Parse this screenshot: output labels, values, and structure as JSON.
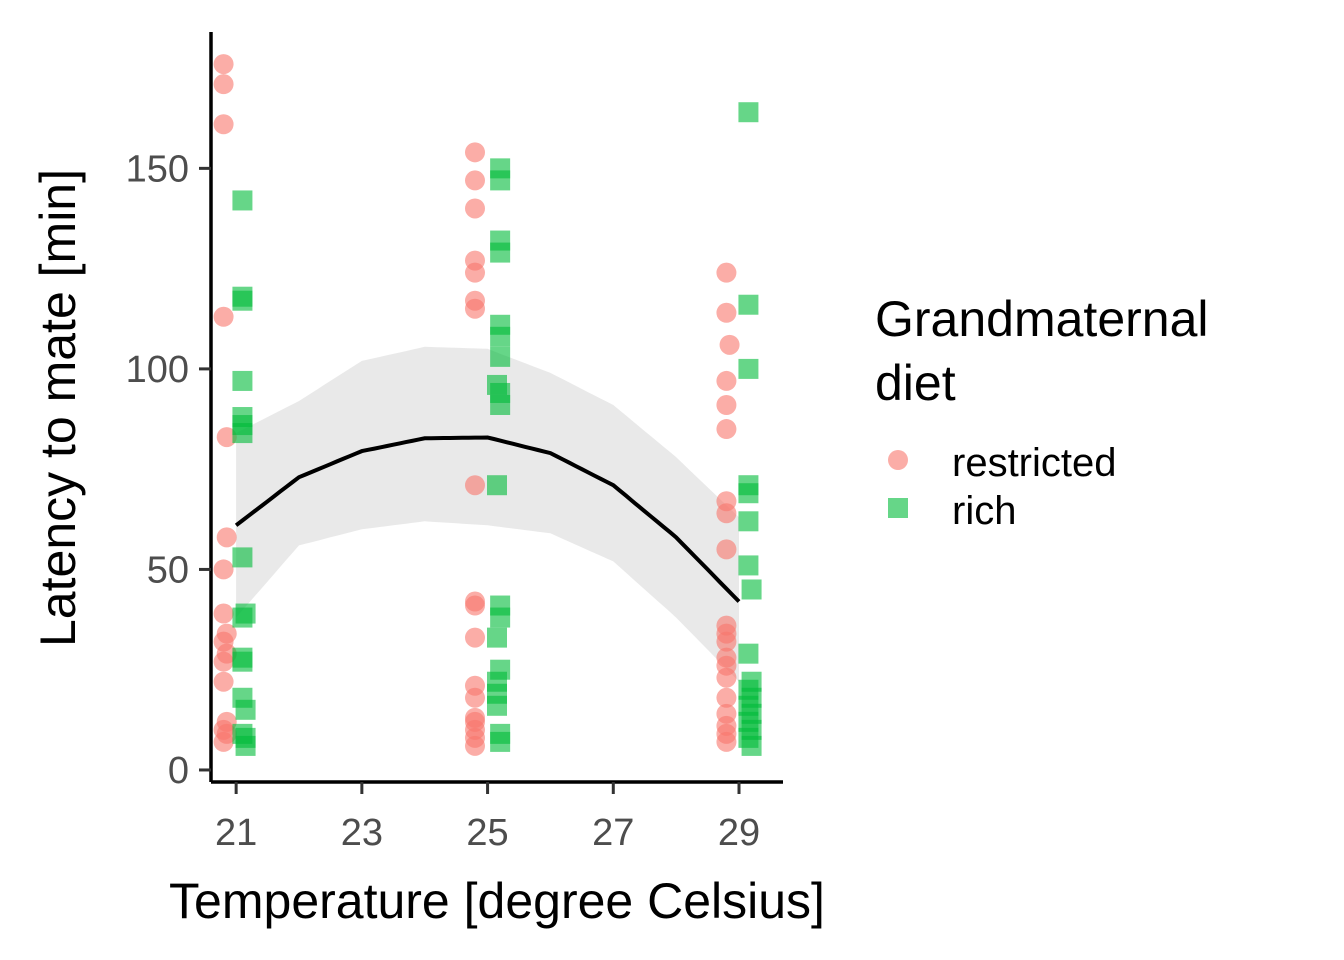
{
  "chart_data": {
    "type": "scatter",
    "title": "",
    "xlabel": "Temperature [degree Celsius]",
    "ylabel": "Latency to mate [min]",
    "xlim": [
      20.6,
      29.7
    ],
    "ylim": [
      -3,
      184
    ],
    "xticks": [
      21,
      23,
      25,
      27,
      29
    ],
    "yticks": [
      0,
      50,
      100,
      150
    ],
    "grid": false,
    "legend": {
      "title_lines": [
        "Grandmaternal",
        "diet"
      ],
      "position": "right"
    },
    "colors": {
      "restricted": "#f8766d",
      "rich": "#00ba38",
      "trend": "#000000",
      "band": "#e5e5e5"
    },
    "series": [
      {
        "name": "restricted",
        "marker": "circle",
        "points": [
          [
            20.8,
            176
          ],
          [
            20.8,
            171
          ],
          [
            20.8,
            161
          ],
          [
            20.8,
            113
          ],
          [
            20.85,
            83
          ],
          [
            20.85,
            58
          ],
          [
            20.8,
            50
          ],
          [
            20.8,
            39
          ],
          [
            20.85,
            34
          ],
          [
            20.8,
            32
          ],
          [
            20.85,
            29
          ],
          [
            20.8,
            27
          ],
          [
            20.8,
            22
          ],
          [
            20.85,
            12
          ],
          [
            20.8,
            10
          ],
          [
            20.85,
            9
          ],
          [
            20.8,
            7
          ],
          [
            24.8,
            154
          ],
          [
            24.8,
            147
          ],
          [
            24.8,
            140
          ],
          [
            24.8,
            127
          ],
          [
            24.8,
            124
          ],
          [
            24.8,
            117
          ],
          [
            24.8,
            115
          ],
          [
            24.8,
            71
          ],
          [
            24.8,
            42
          ],
          [
            24.8,
            41
          ],
          [
            24.8,
            33
          ],
          [
            24.8,
            21
          ],
          [
            24.8,
            18
          ],
          [
            24.8,
            13
          ],
          [
            24.8,
            12
          ],
          [
            24.8,
            10
          ],
          [
            24.8,
            8
          ],
          [
            24.8,
            6
          ],
          [
            28.8,
            124
          ],
          [
            28.8,
            114
          ],
          [
            28.85,
            106
          ],
          [
            28.8,
            97
          ],
          [
            28.8,
            91
          ],
          [
            28.8,
            85
          ],
          [
            28.8,
            67
          ],
          [
            28.8,
            64
          ],
          [
            28.8,
            55
          ],
          [
            28.8,
            36
          ],
          [
            28.8,
            34
          ],
          [
            28.8,
            32
          ],
          [
            28.8,
            28
          ],
          [
            28.8,
            26
          ],
          [
            28.8,
            23
          ],
          [
            28.8,
            18
          ],
          [
            28.8,
            14
          ],
          [
            28.8,
            11
          ],
          [
            28.8,
            9
          ],
          [
            28.8,
            7
          ]
        ]
      },
      {
        "name": "rich",
        "marker": "square",
        "points": [
          [
            21.1,
            142
          ],
          [
            21.1,
            118
          ],
          [
            21.1,
            117
          ],
          [
            21.1,
            97
          ],
          [
            21.1,
            88
          ],
          [
            21.1,
            86
          ],
          [
            21.1,
            84
          ],
          [
            21.1,
            53
          ],
          [
            21.15,
            39
          ],
          [
            21.1,
            38
          ],
          [
            21.1,
            28
          ],
          [
            21.1,
            27
          ],
          [
            21.1,
            18
          ],
          [
            21.15,
            15
          ],
          [
            21.1,
            9
          ],
          [
            21.15,
            8
          ],
          [
            21.15,
            6
          ],
          [
            25.2,
            150
          ],
          [
            25.2,
            147
          ],
          [
            25.2,
            132
          ],
          [
            25.2,
            129
          ],
          [
            25.2,
            111
          ],
          [
            25.2,
            108
          ],
          [
            25.2,
            103
          ],
          [
            25.15,
            96
          ],
          [
            25.2,
            94
          ],
          [
            25.2,
            91
          ],
          [
            25.15,
            71
          ],
          [
            25.2,
            41
          ],
          [
            25.2,
            38
          ],
          [
            25.15,
            33
          ],
          [
            25.2,
            25
          ],
          [
            25.15,
            22
          ],
          [
            25.15,
            19
          ],
          [
            25.15,
            16
          ],
          [
            25.2,
            9
          ],
          [
            25.2,
            7
          ],
          [
            29.15,
            164
          ],
          [
            29.15,
            116
          ],
          [
            29.15,
            100
          ],
          [
            29.15,
            71
          ],
          [
            29.15,
            69
          ],
          [
            29.15,
            62
          ],
          [
            29.15,
            51
          ],
          [
            29.2,
            45
          ],
          [
            29.15,
            29
          ],
          [
            29.2,
            22
          ],
          [
            29.15,
            20
          ],
          [
            29.2,
            18
          ],
          [
            29.15,
            16
          ],
          [
            29.2,
            14
          ],
          [
            29.15,
            12
          ],
          [
            29.2,
            10
          ],
          [
            29.15,
            8
          ],
          [
            29.2,
            6
          ]
        ]
      }
    ],
    "fit": {
      "x": [
        21,
        22,
        23,
        24,
        25,
        26,
        27,
        28,
        29
      ],
      "y": [
        61,
        73,
        79.5,
        82.7,
        82.9,
        79,
        71,
        58,
        42
      ],
      "lower": [
        38,
        56,
        60,
        62,
        61,
        59,
        52,
        38,
        22
      ],
      "upper": [
        84,
        92,
        102,
        105.5,
        105,
        99,
        91,
        78,
        63
      ]
    }
  }
}
